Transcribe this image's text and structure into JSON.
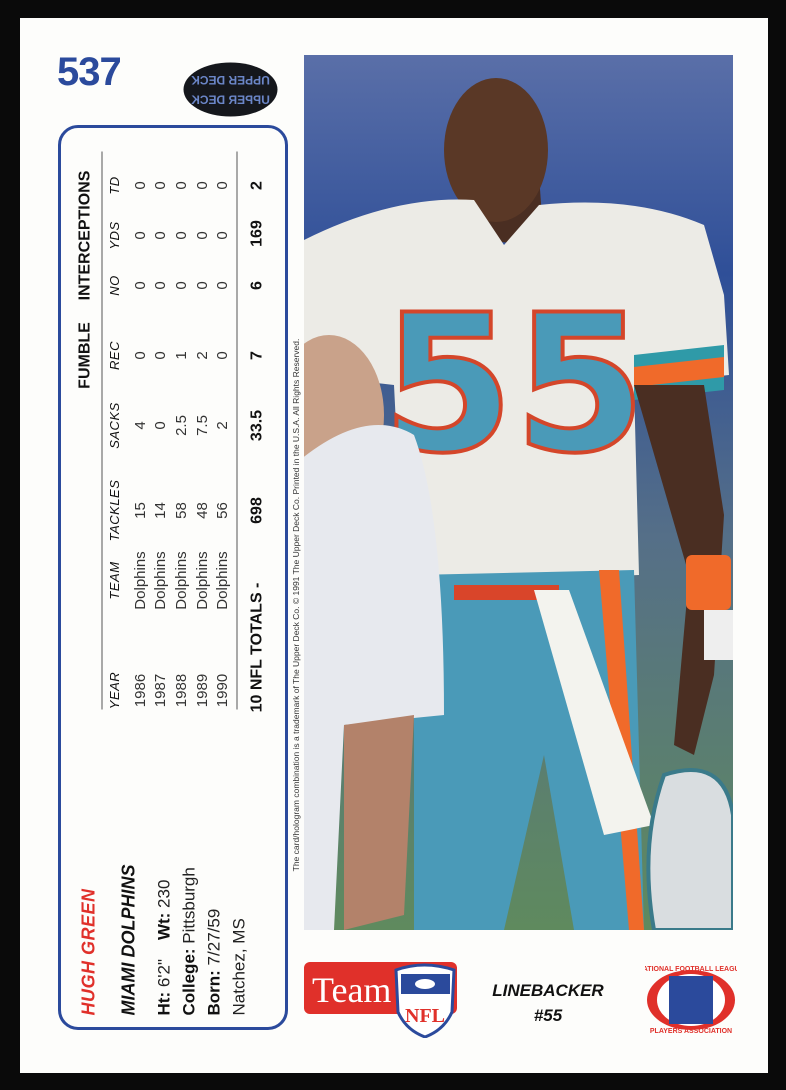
{
  "card": {
    "number": "537",
    "hologram_text": "UPPER DECK",
    "player": {
      "name": "HUGH GREEN",
      "team": "MIAMI DOLPHINS",
      "height_label": "Ht:",
      "height": "6'2\"",
      "weight_label": "Wt:",
      "weight": "230",
      "college_label": "College:",
      "college": "Pittsburgh",
      "born_label": "Born:",
      "born": "7/27/59",
      "birthplace": "Natchez, MS"
    },
    "stats": {
      "group_headers": {
        "fumble": "FUMBLE",
        "interceptions": "INTERCEPTIONS"
      },
      "columns": [
        "YEAR",
        "TEAM",
        "TACKLES",
        "SACKS",
        "REC",
        "NO",
        "YDS",
        "TD"
      ],
      "rows": [
        [
          "1986",
          "Dolphins",
          "15",
          "4",
          "0",
          "0",
          "0",
          "0"
        ],
        [
          "1987",
          "Dolphins",
          "14",
          "0",
          "0",
          "0",
          "0",
          "0"
        ],
        [
          "1988",
          "Dolphins",
          "58",
          "2.5",
          "1",
          "0",
          "0",
          "0"
        ],
        [
          "1989",
          "Dolphins",
          "48",
          "7.5",
          "2",
          "0",
          "0",
          "0"
        ],
        [
          "1990",
          "Dolphins",
          "56",
          "2",
          "0",
          "0",
          "0",
          "0"
        ]
      ],
      "totals_label": "10 NFL TOTALS -",
      "totals": [
        "698",
        "33.5",
        "7",
        "6",
        "169",
        "2"
      ]
    },
    "copyright": "The card/hologram combination is a trademark of The Upper Deck Co.  © 1991 The Upper Deck Co.  Printed in the U.S.A.  All Rights Reserved.",
    "position": "LINEBACKER",
    "jersey_number": "#55",
    "logos": {
      "team_nfl": "Team NFL",
      "nflpa": "NATIONAL FOOTBALL LEAGUE PLAYERS ASSOCIATION"
    },
    "photo_jersey_number": "55",
    "colors": {
      "blue": "#2b4a9c",
      "red": "#e0302a",
      "aqua": "#4a9ab8",
      "orange": "#f06a2a"
    }
  }
}
